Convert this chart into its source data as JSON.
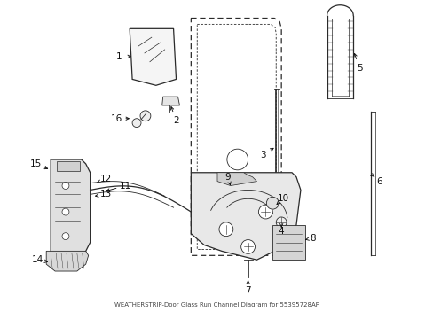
{
  "bg_color": "#ffffff",
  "fig_width": 4.89,
  "fig_height": 3.6,
  "dpi": 100,
  "line_color": "#2a2a2a",
  "label_fontsize": 7.5,
  "caption": "WEATHERSTRIP-Door Glass Run Channel Diagram for 55395728AF",
  "caption_fontsize": 5.0
}
